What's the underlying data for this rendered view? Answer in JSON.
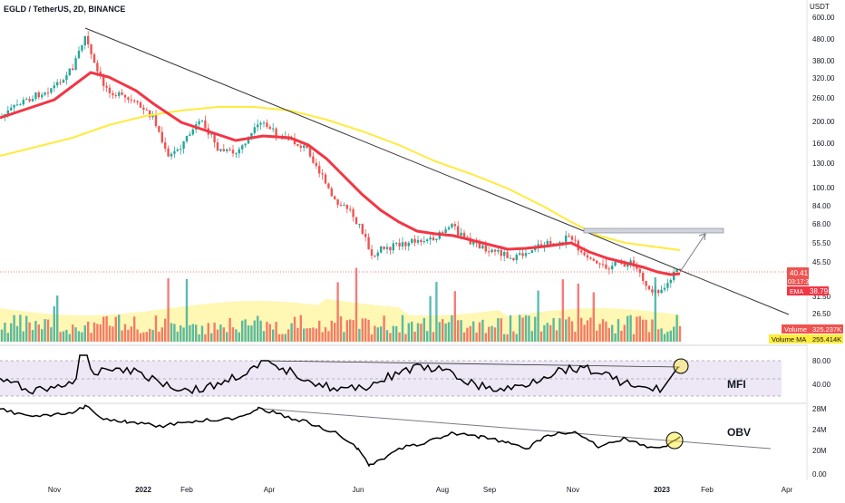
{
  "chart_header": {
    "symbol_line": "EGLD / TetherUS, 2D, BINANCE"
  },
  "price_axis": {
    "currency": "USDT",
    "ticks": [
      "600.00",
      "480.00",
      "380.00",
      "320.00",
      "260.00",
      "200.00",
      "160.00",
      "130.00",
      "100.00",
      "84.00",
      "68.00",
      "55.50",
      "45.50",
      "31.50",
      "26.50"
    ]
  },
  "price_tags": {
    "last_price": "40.41",
    "countdown": "03:17:33",
    "ema_label": "EMA",
    "ema_value": "38.79"
  },
  "volume": {
    "volume_label": "Volume",
    "volume_value": "325.237K",
    "volume_ma_label": "Volume MA",
    "volume_ma_value": "255.414K"
  },
  "mfi_panel": {
    "label": "MFI",
    "ticks": [
      "80.00",
      "40.00"
    ]
  },
  "obv_panel": {
    "label": "OBV",
    "ticks": [
      "28M",
      "24M",
      "20M",
      "0.00"
    ]
  },
  "time_axis": {
    "labels": [
      "Nov",
      "2022",
      "Feb",
      "Apr",
      "Jun",
      "Aug",
      "Sep",
      "Nov",
      "2023",
      "Feb",
      "Apr"
    ]
  },
  "colors": {
    "up_candle": "#26a69a",
    "down_candle": "#ef5350",
    "ema_line": "#f23645",
    "slow_ma_line": "#ffeb3b",
    "volume_ma_fill": "#fff176",
    "mfi_band": "#ede7f6",
    "trendline": "#333333"
  }
}
